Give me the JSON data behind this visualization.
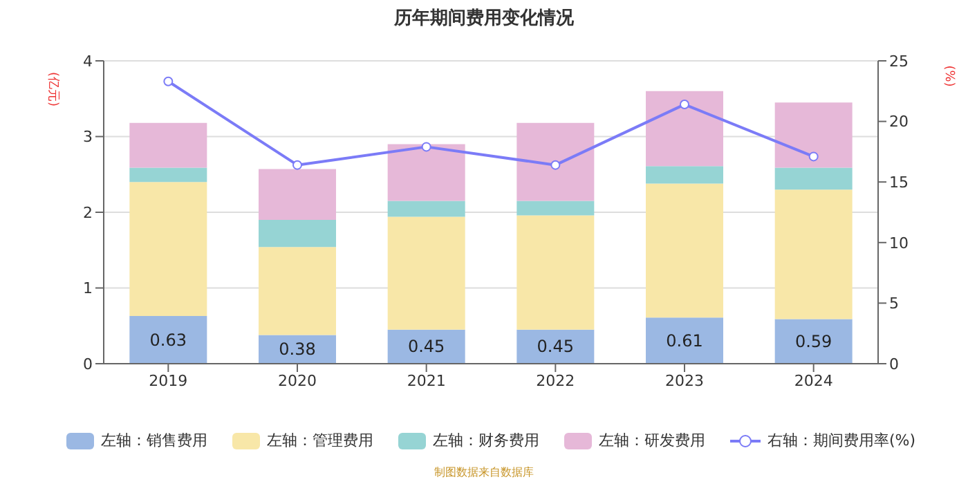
{
  "chart_data": {
    "type": "bar",
    "title": "历年期间费用变化情况",
    "ylabel": "(亿元)",
    "y2label": "(%)",
    "categories": [
      "2019",
      "2020",
      "2021",
      "2022",
      "2023",
      "2024"
    ],
    "stacked": true,
    "series": [
      {
        "name": "左轴：销售费用",
        "color": "#9bb8e3",
        "values": [
          0.63,
          0.38,
          0.45,
          0.45,
          0.61,
          0.59
        ],
        "value_labels": [
          "0.63",
          "0.38",
          "0.45",
          "0.45",
          "0.61",
          "0.59"
        ]
      },
      {
        "name": "左轴：管理费用",
        "color": "#f8e7a8",
        "values": [
          1.77,
          1.16,
          1.49,
          1.51,
          1.77,
          1.71
        ]
      },
      {
        "name": "左轴：财务费用",
        "color": "#96d4d4",
        "values": [
          0.19,
          0.36,
          0.21,
          0.19,
          0.23,
          0.29
        ]
      },
      {
        "name": "左轴：研发费用",
        "color": "#e6b8d8",
        "values": [
          0.59,
          0.67,
          0.75,
          1.03,
          0.99,
          0.86
        ]
      },
      {
        "name": "右轴：期间费用率(%)",
        "type": "line",
        "axis": "y2",
        "color": "#7b7bf7",
        "marker": "circle",
        "values": [
          23.3,
          16.4,
          17.9,
          16.4,
          21.4,
          17.1
        ]
      }
    ],
    "ylim": [
      0,
      4
    ],
    "yticks": [
      0,
      1,
      2,
      3,
      4
    ],
    "y2lim": [
      0,
      25
    ],
    "y2ticks": [
      0,
      5,
      10,
      15,
      20,
      25
    ],
    "grid": "y",
    "legend": "bottom",
    "annotations": [
      "制图数据来自数据库"
    ]
  }
}
